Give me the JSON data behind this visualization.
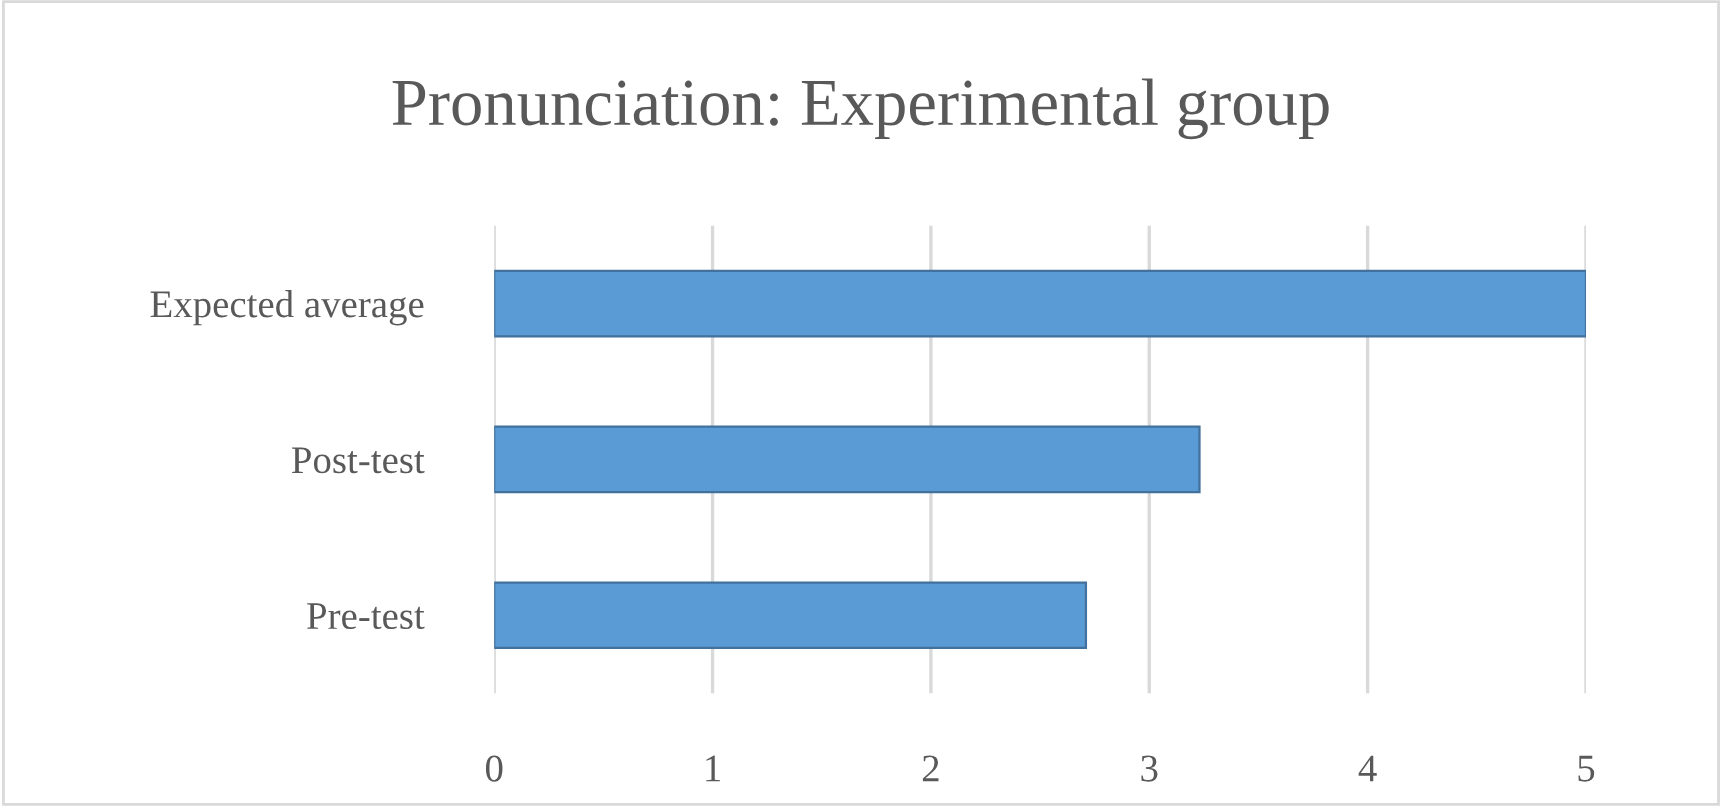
{
  "chart_data": {
    "type": "bar",
    "orientation": "horizontal",
    "title": "Pronunciation: Experimental group",
    "categories": [
      "Expected average",
      "Post-test",
      "Pre-test"
    ],
    "values": [
      5,
      3.23,
      2.71
    ],
    "color": "#5b9bd5",
    "xlim": [
      0,
      5
    ],
    "xticks": [
      0,
      1,
      2,
      3,
      4,
      5
    ],
    "grid": "x",
    "legend": false
  }
}
